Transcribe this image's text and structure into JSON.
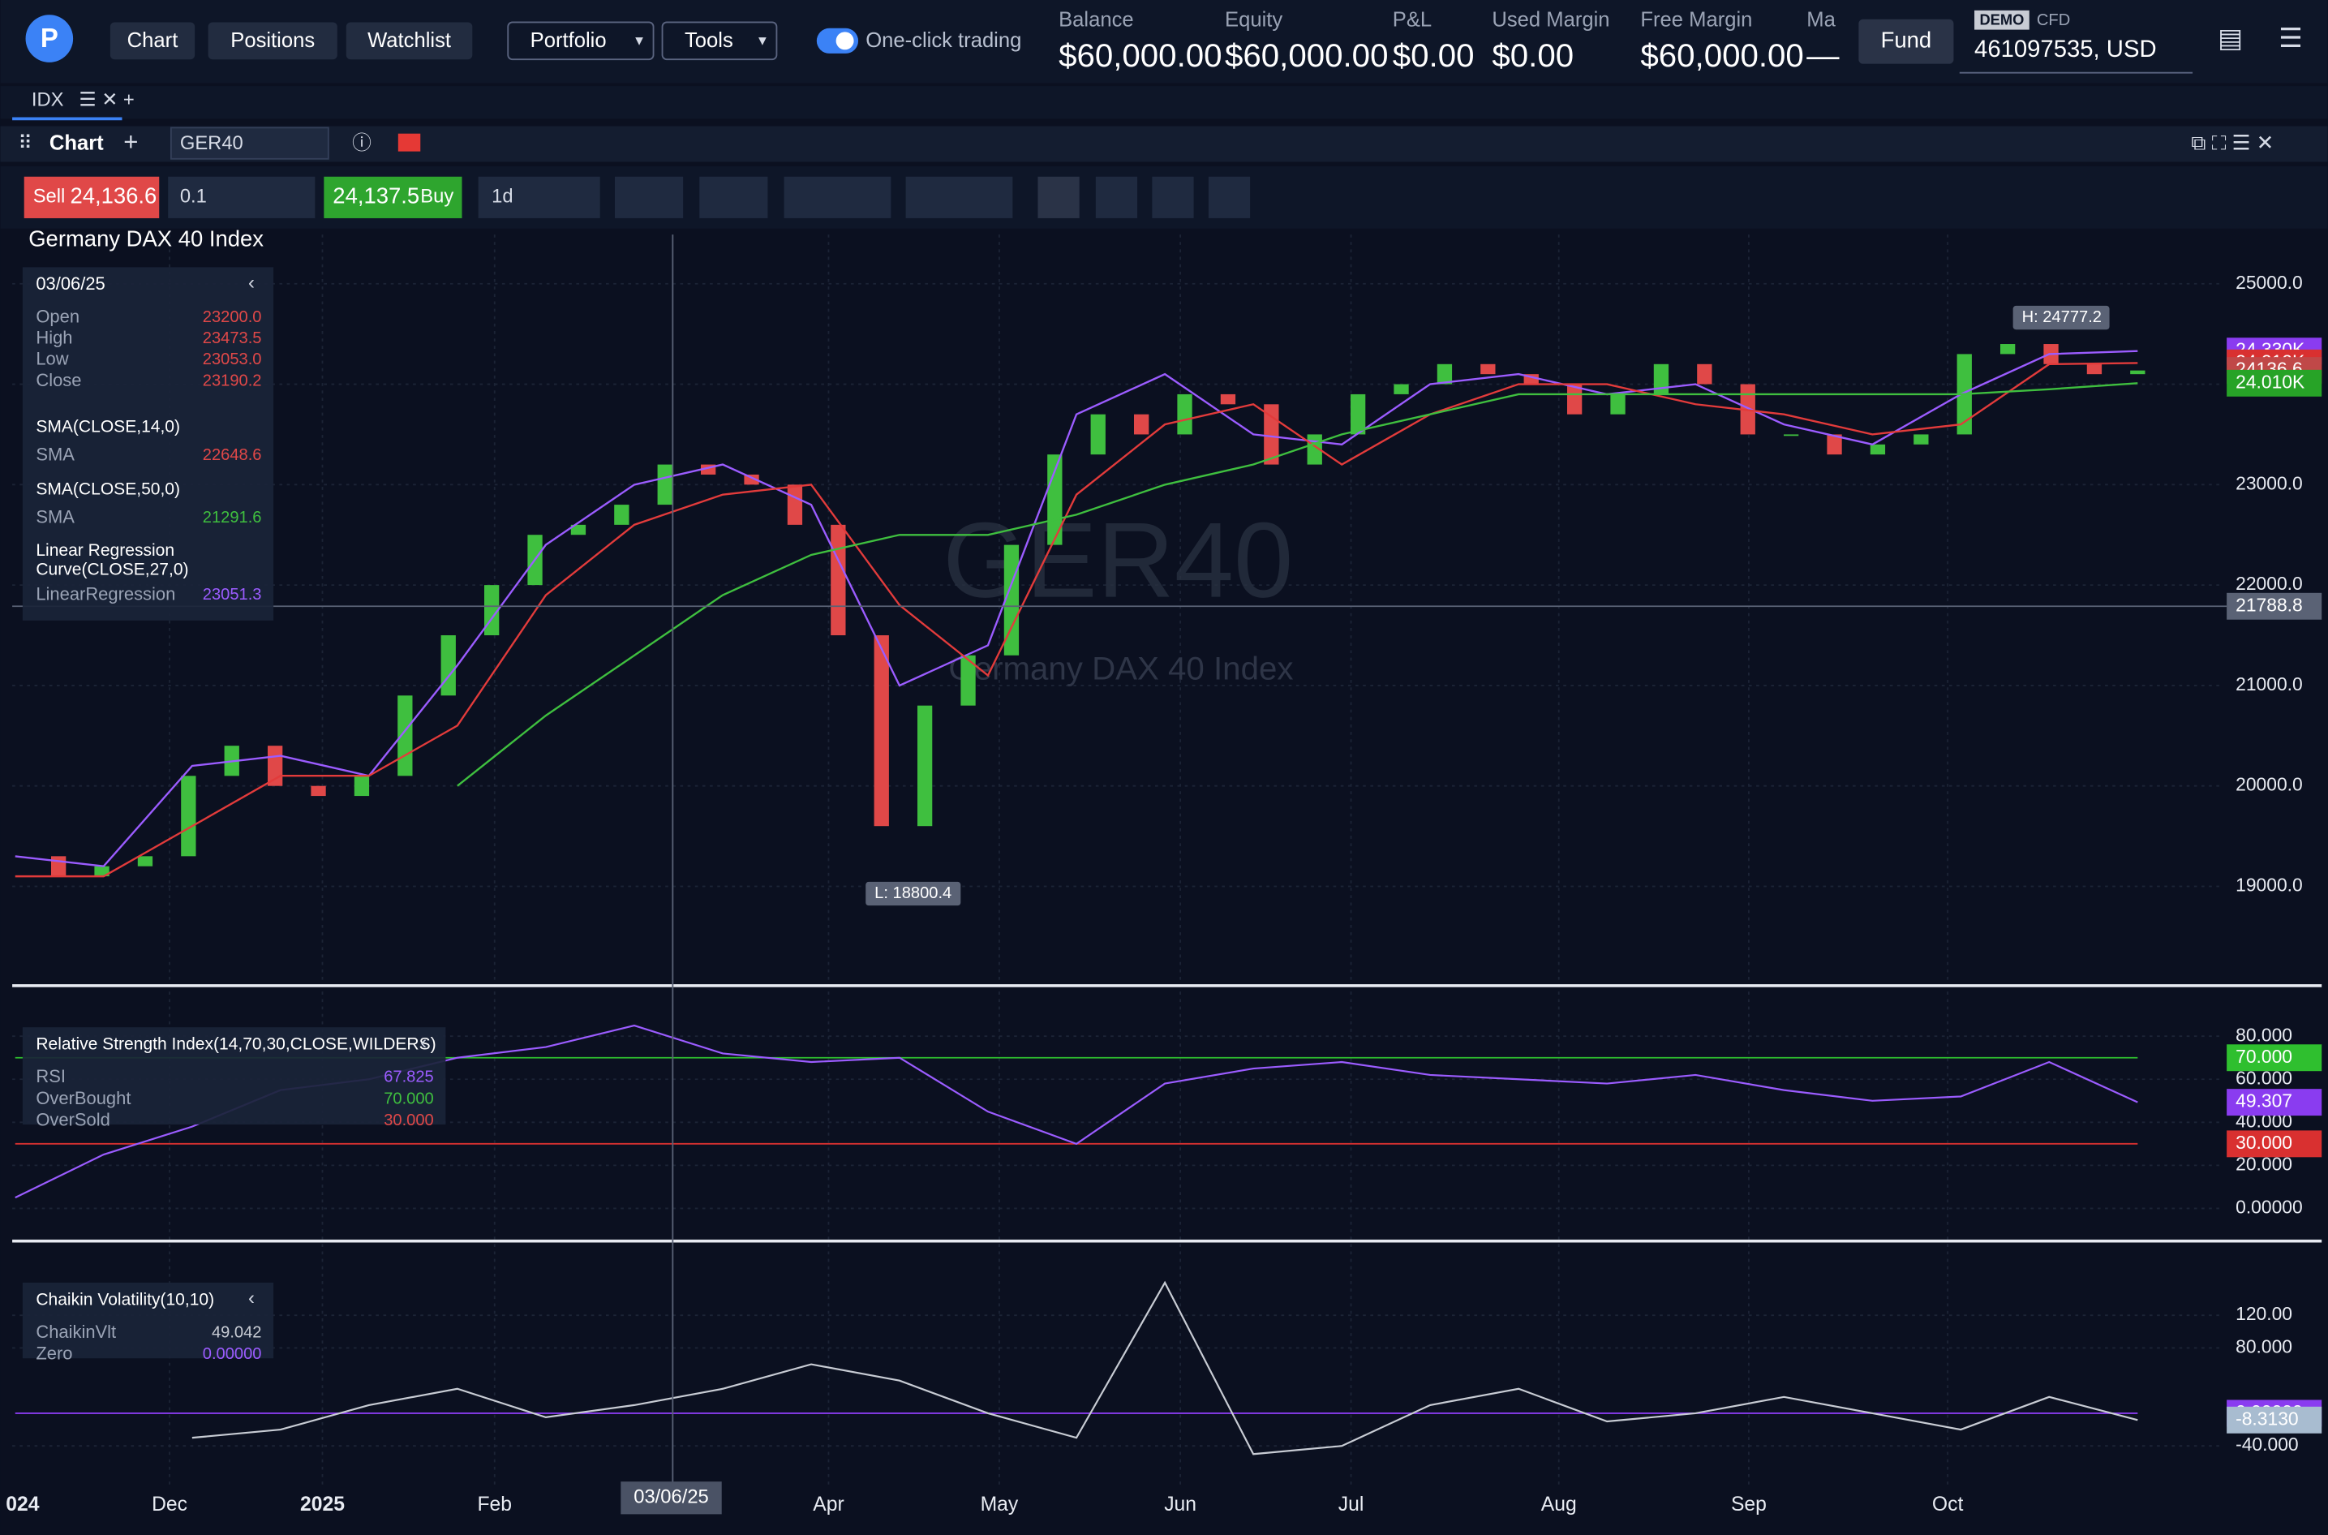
{
  "header": {
    "nav": [
      "Chart",
      "Positions",
      "Watchlist"
    ],
    "menus": [
      "Portfolio",
      "Tools"
    ],
    "toggle": "One-click trading",
    "stats": [
      {
        "label": "Balance",
        "value": "$60,000.00"
      },
      {
        "label": "Equity",
        "value": "$60,000.00"
      },
      {
        "label": "P&L",
        "value": "$0.00"
      },
      {
        "label": "Used Margin",
        "value": "$0.00"
      },
      {
        "label": "Free Margin",
        "value": "$60,000.00"
      },
      {
        "label": "Ma",
        "value": "—"
      }
    ],
    "fund": "Fund",
    "badge": "DEMO",
    "account_type": "CFD",
    "account": "461097535, USD"
  },
  "tabs": {
    "tab": "IDX"
  },
  "panel": {
    "title": "Chart",
    "symbol": "GER40"
  },
  "toolbar": {
    "sell_label": "Sell",
    "sell_price": "24,136.6",
    "quantity": "0.1",
    "buy_price": "24,137.5",
    "buy_label": "Buy",
    "interval": "1d"
  },
  "chart_data": [
    {
      "type": "candlestick",
      "title": "Germany DAX 40 Index",
      "watermark": "GER40",
      "watermark_subtitle": "Germany DAX 40 Index",
      "info": {
        "date": "03/06/25",
        "rows": [
          [
            "Open",
            "23200.0"
          ],
          [
            "High",
            "23473.5"
          ],
          [
            "Low",
            "23053.0"
          ],
          [
            "Close",
            "23190.2"
          ]
        ],
        "indicators": [
          {
            "name": "SMA(CLOSE,14,0)",
            "rows": [
              [
                "SMA",
                "22648.6"
              ]
            ]
          },
          {
            "name": "SMA(CLOSE,50,0)",
            "rows": [
              [
                "SMA",
                "21291.6"
              ]
            ]
          },
          {
            "name": "Linear Regression Curve(CLOSE,27,0)",
            "rows": [
              [
                "LinearRegression",
                "23051.3"
              ]
            ]
          }
        ]
      },
      "values": [
        19300,
        19100,
        19200,
        19300,
        20100,
        20400,
        20000,
        19900,
        20100,
        20900,
        21500,
        22000,
        22500,
        22600,
        22800,
        23200,
        23100,
        23000,
        22600,
        21500,
        19600,
        20800,
        21300,
        22400,
        23300,
        23700,
        23500,
        23900,
        23800,
        23200,
        23500,
        23900,
        24000,
        24200,
        24100,
        24000,
        23700,
        23900,
        24200,
        24000,
        23500,
        23500,
        23300,
        23400,
        23500,
        24300,
        24400,
        24200,
        24100,
        24136.6
      ],
      "series": [
        {
          "name": "LinearRegression",
          "color": "#9b5cff",
          "values": [
            19300,
            19200,
            20200,
            20300,
            20100,
            21200,
            22400,
            23000,
            23200,
            22800,
            21000,
            21400,
            23700,
            24100,
            23500,
            23400,
            24000,
            24100,
            23900,
            24000,
            23600,
            23400,
            23900,
            24300,
            24330
          ]
        },
        {
          "name": "SMA(CLOSE,14,0)",
          "color": "#e23b3b",
          "values": [
            19100,
            19100,
            19600,
            20100,
            20100,
            20600,
            21900,
            22600,
            22900,
            23000,
            21800,
            21100,
            22900,
            23600,
            23800,
            23200,
            23700,
            24000,
            24000,
            23800,
            23700,
            23500,
            23600,
            24200,
            24212
          ]
        },
        {
          "name": "SMA(CLOSE,50,0)",
          "color": "#3fbf3f",
          "values": [
            null,
            null,
            null,
            null,
            null,
            20000,
            20700,
            21300,
            21900,
            22300,
            22500,
            22500,
            22700,
            23000,
            23200,
            23500,
            23700,
            23900,
            23900,
            23900,
            23900,
            23900,
            23900,
            23950,
            24010
          ]
        }
      ],
      "ylim": [
        18040,
        25490
      ],
      "yticks": [
        {
          "value": 19000,
          "label": "19000.0"
        },
        {
          "value": 20000,
          "label": "20000.0"
        },
        {
          "value": 21000,
          "label": "21000.0"
        },
        {
          "value": 22000,
          "label": "22000.0"
        },
        {
          "value": 23000,
          "label": "23000.0"
        },
        {
          "value": 24000,
          "label": "24000.0"
        },
        {
          "value": 25000,
          "label": "25000.0"
        }
      ],
      "price_tags": [
        {
          "value": 24330,
          "label": "24.330K",
          "color": "#8a3cf0"
        },
        {
          "value": 24212,
          "label": "24.212K",
          "color": "#d93030"
        },
        {
          "value": 24136.6,
          "label": "24136.6",
          "color": "#c04848"
        },
        {
          "value": 24010,
          "label": "24.010K",
          "color": "#27a327"
        },
        {
          "value": 21788.8,
          "label": "21788.8",
          "color": "#5a6275"
        }
      ],
      "high_label": "H: 24777.2",
      "low_label": "L: 18800.4",
      "grid": true
    },
    {
      "type": "line",
      "title": "Relative Strength Index(14,70,30,CLOSE,WILDERS)",
      "rows": [
        [
          "RSI",
          "67.825"
        ],
        [
          "OverBought",
          "70.000"
        ],
        [
          "OverSold",
          "30.000"
        ]
      ],
      "series": [
        {
          "name": "RSI",
          "color": "#9b5cff",
          "values": [
            5,
            25,
            38,
            55,
            60,
            70,
            75,
            85,
            72,
            68,
            70,
            45,
            30,
            58,
            65,
            68,
            62,
            60,
            58,
            62,
            55,
            50,
            52,
            68,
            49.307
          ]
        }
      ],
      "levels": [
        {
          "value": 70,
          "label": "70.000",
          "color": "#2fbf2f"
        },
        {
          "value": 30,
          "label": "30.000",
          "color": "#d93030"
        }
      ],
      "last_label": "49.307",
      "ylim": [
        -13.8,
        100.7
      ],
      "yticks": [
        {
          "value": 0,
          "label": "0.00000"
        },
        {
          "value": 20,
          "label": "20.000"
        },
        {
          "value": 40,
          "label": "40.000"
        },
        {
          "value": 60,
          "label": "60.000"
        },
        {
          "value": 80,
          "label": "80.000"
        }
      ]
    },
    {
      "type": "line",
      "title": "Chaikin Volatility(10,10)",
      "rows": [
        [
          "ChaikinVlt",
          "49.042"
        ],
        [
          "Zero",
          "0.00000"
        ]
      ],
      "series": [
        {
          "name": "ChaikinVlt",
          "color": "#c8ccd4",
          "values": [
            null,
            null,
            -30,
            -20,
            10,
            30,
            -5,
            10,
            30,
            60,
            40,
            0,
            -30,
            160,
            -50,
            -40,
            10,
            30,
            -10,
            0,
            20,
            0,
            -20,
            20,
            -8.313
          ]
        }
      ],
      "levels": [
        {
          "value": 0,
          "label": "0.00000",
          "color": "#8a3cf0"
        }
      ],
      "last_label": "-8.3130",
      "ylim": [
        -87.3,
        203.6
      ],
      "yticks": [
        {
          "value": -40,
          "label": "-40.000"
        },
        {
          "value": 80,
          "label": "80.000"
        },
        {
          "value": 120,
          "label": "120.00"
        }
      ]
    }
  ],
  "xaxis": {
    "labels": [
      "024",
      "Dec",
      "2025",
      "Feb",
      "Apr",
      "May",
      "Jun",
      "Jul",
      "Aug",
      "Sep",
      "Oct"
    ],
    "crosshair": "03/06/25"
  }
}
